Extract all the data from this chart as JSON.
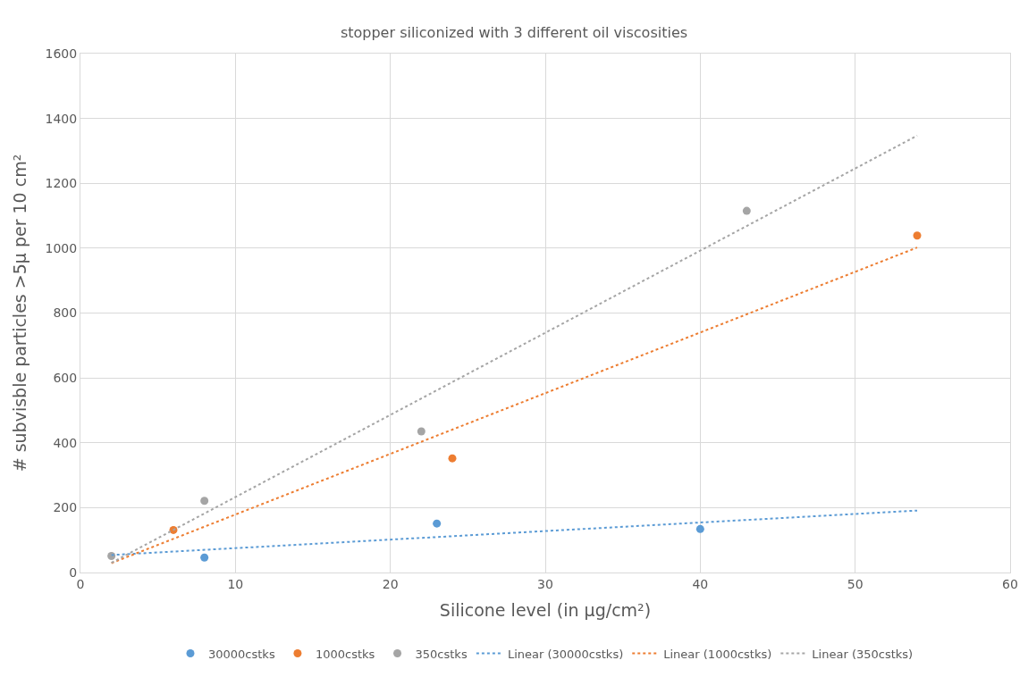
{
  "chart_data": {
    "type": "scatter",
    "title": "stopper siliconized with 3 different oil viscosities",
    "xlabel": "Silicone level (in µg/cm²)",
    "ylabel": "# subvisble particles >5µ per 10 cm²",
    "xlim": [
      0,
      60
    ],
    "xticks": [
      0,
      10,
      20,
      30,
      40,
      50,
      60
    ],
    "ylim": [
      0,
      1600
    ],
    "yticks": [
      0,
      200,
      400,
      600,
      800,
      1000,
      1200,
      1400,
      1600
    ],
    "grid": true,
    "legend": "bottom",
    "marker": "circle",
    "series": [
      {
        "name": "30000cstks",
        "color": "#5b9bd5",
        "x": [
          8,
          23,
          40
        ],
        "values": [
          46,
          151,
          134
        ]
      },
      {
        "name": "1000cstks",
        "color": "#ed7d31",
        "x": [
          6,
          24,
          54
        ],
        "values": [
          131,
          352,
          1039
        ]
      },
      {
        "name": "350cstks",
        "color": "#a5a5a5",
        "x": [
          2,
          8,
          22,
          43
        ],
        "values": [
          51,
          221,
          435,
          1115
        ]
      },
      {
        "name": "Linear (30000cstks)",
        "type": "line",
        "line_style": "dotted",
        "marker": "none",
        "color": "#5b9bd5",
        "x": [
          2,
          54
        ],
        "values": [
          54,
          191
        ]
      },
      {
        "name": "Linear (1000cstks)",
        "type": "line",
        "line_style": "dotted",
        "marker": "none",
        "color": "#ed7d31",
        "x": [
          2,
          54
        ],
        "values": [
          29,
          1002
        ]
      },
      {
        "name": "Linear (350cstks)",
        "type": "line",
        "line_style": "dotted",
        "marker": "none",
        "color": "#a5a5a5",
        "x": [
          2,
          54
        ],
        "values": [
          30,
          1347
        ]
      }
    ]
  }
}
